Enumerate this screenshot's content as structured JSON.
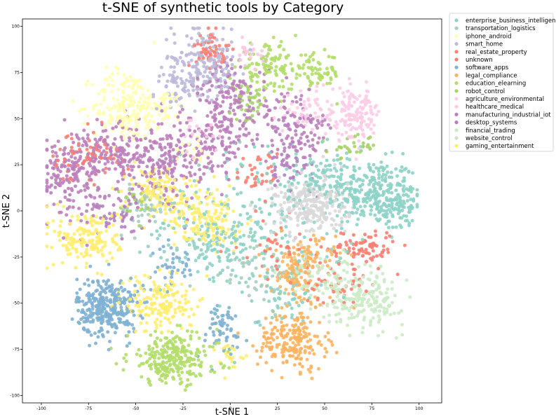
{
  "chart_data": {
    "type": "scatter",
    "title": "t-SNE of synthetic tools by Category",
    "xlabel": "t-SNE 1",
    "ylabel": "t-SNE 2",
    "xlim": [
      -110,
      112
    ],
    "ylim": [
      -104,
      104
    ],
    "xticks": [
      -100,
      -75,
      -50,
      -25,
      0,
      25,
      50,
      75,
      100
    ],
    "yticks": [
      -100,
      -75,
      -50,
      -25,
      0,
      25,
      50,
      75,
      100
    ],
    "grid": false,
    "legend_position": "outside-top-right",
    "series": [
      {
        "name": "enterprise_business_intelligence",
        "color": "#8dd3c7",
        "clusters": [
          [
            75,
            10,
            12,
            9,
            260
          ],
          [
            90,
            2,
            6,
            7,
            70
          ],
          [
            50,
            17,
            10,
            8,
            90
          ],
          [
            15,
            -5,
            25,
            20,
            220
          ],
          [
            -10,
            -20,
            12,
            8,
            80
          ],
          [
            30,
            -45,
            8,
            8,
            50
          ]
        ]
      },
      {
        "name": "transportation_logistics",
        "color": "#a6cfc0",
        "clusters": [
          [
            -45,
            0,
            8,
            6,
            50
          ],
          [
            10,
            -30,
            15,
            10,
            60
          ]
        ]
      },
      {
        "name": "iphone_android",
        "color": "#ffffb3",
        "clusters": [
          [
            -55,
            57,
            9,
            10,
            210
          ],
          [
            -35,
            55,
            6,
            5,
            50
          ],
          [
            -20,
            35,
            5,
            5,
            20
          ]
        ]
      },
      {
        "name": "smart_home",
        "color": "#bebada",
        "clusters": [
          [
            -15,
            83,
            8,
            10,
            120
          ],
          [
            -25,
            70,
            8,
            6,
            80
          ],
          [
            -5,
            75,
            6,
            5,
            40
          ]
        ]
      },
      {
        "name": "real_estate_property",
        "color": "#fb8072",
        "clusters": [
          [
            70,
            -20,
            9,
            5,
            90
          ],
          [
            -10,
            88,
            4,
            5,
            50
          ],
          [
            -80,
            28,
            8,
            8,
            45
          ],
          [
            -65,
            30,
            6,
            6,
            25
          ],
          [
            15,
            20,
            6,
            6,
            35
          ]
        ]
      },
      {
        "name": "unknown",
        "color": "#fa7f6e",
        "clusters": [
          [
            55,
            -40,
            8,
            5,
            45
          ],
          [
            25,
            -20,
            10,
            8,
            40
          ]
        ]
      },
      {
        "name": "software_apps",
        "color": "#80b1d3",
        "clusters": [
          [
            -65,
            -52,
            8,
            8,
            320
          ],
          [
            -5,
            -65,
            7,
            8,
            60
          ],
          [
            -30,
            -30,
            6,
            6,
            40
          ]
        ]
      },
      {
        "name": "legal_compliance",
        "color": "#fdb462",
        "clusters": [
          [
            33,
            -70,
            9,
            8,
            210
          ],
          [
            35,
            -35,
            7,
            9,
            100
          ],
          [
            40,
            -25,
            8,
            6,
            60
          ]
        ]
      },
      {
        "name": "education_elearning",
        "color": "#b3de69",
        "clusters": [
          [
            -30,
            -80,
            12,
            7,
            260
          ],
          [
            20,
            78,
            8,
            6,
            110
          ],
          [
            45,
            75,
            7,
            5,
            70
          ]
        ]
      },
      {
        "name": "robot_control",
        "color": "#a9d36a",
        "clusters": [
          [
            10,
            58,
            5,
            5,
            40
          ],
          [
            65,
            35,
            6,
            3,
            30
          ],
          [
            -50,
            5,
            5,
            5,
            20
          ]
        ]
      },
      {
        "name": "agriculture_environmental",
        "color": "#fccde5",
        "clusters": [
          [
            65,
            52,
            8,
            7,
            150
          ],
          [
            40,
            55,
            5,
            5,
            40
          ]
        ]
      },
      {
        "name": "healthcare_medical",
        "color": "#fbc9e2",
        "clusters": [
          [
            10,
            85,
            4,
            3,
            25
          ],
          [
            -15,
            40,
            5,
            5,
            20
          ]
        ]
      },
      {
        "name": "manufacturing_industrial_iot",
        "color": "#bc80bd",
        "clusters": [
          [
            -85,
            20,
            9,
            11,
            180
          ],
          [
            -55,
            30,
            12,
            10,
            200
          ],
          [
            0,
            60,
            10,
            10,
            160
          ],
          [
            -30,
            25,
            10,
            12,
            150
          ],
          [
            35,
            45,
            9,
            10,
            120
          ],
          [
            -5,
            35,
            8,
            8,
            80
          ]
        ]
      },
      {
        "name": "desktop_systems",
        "color": "#b57fc0",
        "clusters": [
          [
            -60,
            0,
            7,
            6,
            50
          ],
          [
            30,
            25,
            7,
            7,
            50
          ]
        ]
      },
      {
        "name": "financial_trading",
        "color": "#ccebc5",
        "clusters": [
          [
            72,
            -48,
            10,
            7,
            180
          ],
          [
            50,
            -35,
            10,
            6,
            90
          ]
        ]
      },
      {
        "name": "website_control",
        "color": "#d9d9d9",
        "clusters": [
          [
            42,
            3,
            10,
            8,
            260
          ]
        ]
      },
      {
        "name": "gaming_entertainment",
        "color": "#ffed6f",
        "clusters": [
          [
            -75,
            -15,
            9,
            8,
            170
          ],
          [
            -37,
            -50,
            9,
            8,
            170
          ],
          [
            -40,
            12,
            8,
            6,
            110
          ],
          [
            -10,
            -5,
            8,
            8,
            110
          ],
          [
            -25,
            0,
            6,
            6,
            50
          ],
          [
            0,
            -78,
            4,
            4,
            20
          ]
        ]
      }
    ]
  }
}
